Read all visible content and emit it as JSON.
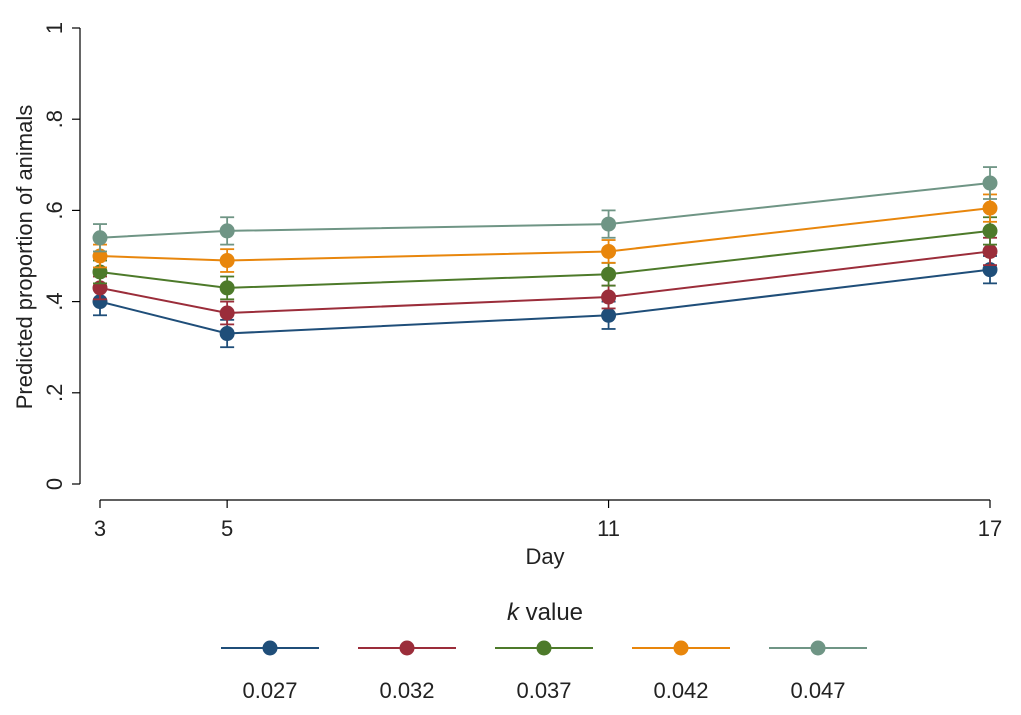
{
  "chart_data": {
    "type": "line",
    "xlabel": "Day",
    "ylabel": "Predicted proportion of animals",
    "x": [
      3,
      5,
      11,
      17
    ],
    "x_tick_labels": [
      "3",
      "5",
      "11",
      "17"
    ],
    "y_ticks": [
      0,
      0.2,
      0.4,
      0.6,
      0.8,
      1
    ],
    "y_tick_labels": [
      "0",
      ".2",
      ".4",
      ".6",
      ".8",
      "1"
    ],
    "xlim": [
      3,
      17
    ],
    "ylim": [
      0,
      1
    ],
    "grid": false,
    "legend": {
      "title_italic": "k",
      "title_rest": " value",
      "placement": "bottom"
    },
    "series": [
      {
        "name": "0.027",
        "color": "#1f4e79",
        "values": [
          0.4,
          0.33,
          0.37,
          0.47
        ],
        "ci": [
          [
            0.37,
            0.43
          ],
          [
            0.3,
            0.36
          ],
          [
            0.34,
            0.4
          ],
          [
            0.44,
            0.5
          ]
        ]
      },
      {
        "name": "0.032",
        "color": "#9b2d3a",
        "values": [
          0.43,
          0.375,
          0.41,
          0.51
        ],
        "ci": [
          [
            0.405,
            0.455
          ],
          [
            0.35,
            0.4
          ],
          [
            0.385,
            0.435
          ],
          [
            0.48,
            0.54
          ]
        ]
      },
      {
        "name": "0.037",
        "color": "#4d7a2a",
        "values": [
          0.465,
          0.43,
          0.46,
          0.555
        ],
        "ci": [
          [
            0.44,
            0.49
          ],
          [
            0.405,
            0.455
          ],
          [
            0.435,
            0.485
          ],
          [
            0.525,
            0.585
          ]
        ]
      },
      {
        "name": "0.042",
        "color": "#e8860c",
        "values": [
          0.5,
          0.49,
          0.51,
          0.605
        ],
        "ci": [
          [
            0.475,
            0.525
          ],
          [
            0.465,
            0.515
          ],
          [
            0.485,
            0.535
          ],
          [
            0.575,
            0.635
          ]
        ]
      },
      {
        "name": "0.047",
        "color": "#6f9585",
        "values": [
          0.54,
          0.555,
          0.57,
          0.66
        ],
        "ci": [
          [
            0.51,
            0.57
          ],
          [
            0.525,
            0.585
          ],
          [
            0.54,
            0.6
          ],
          [
            0.625,
            0.695
          ]
        ]
      }
    ]
  }
}
